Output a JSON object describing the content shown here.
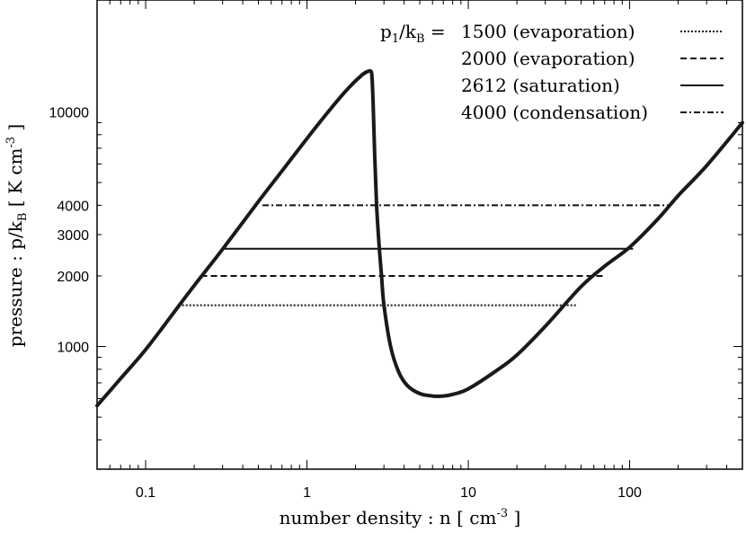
{
  "chart_data": {
    "type": "line",
    "xlabel": "number density : n [ cm",
    "xlabel_exp": "-3",
    "xlabel_close": " ]",
    "ylabel": "pressure : p/k",
    "ylabel_sub": "B",
    "ylabel_unit": " [ K cm",
    "ylabel_exp": "-3",
    "ylabel_close": " ]",
    "xscale": "log",
    "yscale": "log",
    "xlim": [
      0.05,
      500
    ],
    "ylim": [
      300,
      30000
    ],
    "x_ticks": [
      {
        "value": 0.1,
        "label": "0.1"
      },
      {
        "value": 1,
        "label": "1"
      },
      {
        "value": 10,
        "label": "10"
      },
      {
        "value": 100,
        "label": "100"
      }
    ],
    "y_ticks": [
      {
        "value": 1000,
        "label": "1000"
      },
      {
        "value": 2000,
        "label": "2000"
      },
      {
        "value": 3000,
        "label": "3000"
      },
      {
        "value": 4000,
        "label": "4000"
      },
      {
        "value": 10000,
        "label": "10000"
      }
    ],
    "legend": {
      "placement": "top-right",
      "title_main": "p",
      "title_sub1": "1",
      "title_mid": "/k",
      "title_sub2": "B",
      "title_eq": " = ",
      "entries": [
        {
          "label": "1500 (evaporation)",
          "style": "dotted"
        },
        {
          "label": "2000 (evaporation)",
          "style": "dashed"
        },
        {
          "label": "2612 (saturation)",
          "style": "solid"
        },
        {
          "label": "4000 (condensation)",
          "style": "dashdot"
        }
      ]
    },
    "curve": {
      "x": [
        0.05,
        0.07,
        0.1,
        0.15,
        0.2,
        0.3,
        0.5,
        0.7,
        1.0,
        1.4,
        1.8,
        2.2,
        2.4,
        2.5,
        2.53,
        2.57,
        2.63,
        2.7,
        2.8,
        2.9,
        3.0,
        3.3,
        3.7,
        4.2,
        5.0,
        6.0,
        7.0,
        8.0,
        10,
        15,
        20,
        30,
        50,
        70,
        100,
        150,
        200,
        300,
        500
      ],
      "y": [
        560,
        730,
        970,
        1400,
        1820,
        2600,
        4150,
        5600,
        7700,
        10300,
        12600,
        14400,
        14900,
        14850,
        14000,
        11000,
        6500,
        4000,
        2700,
        2000,
        1500,
        1000,
        780,
        680,
        630,
        615,
        615,
        625,
        660,
        790,
        920,
        1220,
        1800,
        2200,
        2650,
        3500,
        4400,
        5900,
        9000
      ]
    },
    "series": [
      {
        "name": "1500 (evaporation)",
        "style": "dotted",
        "y": 1500,
        "x_start": 0.16,
        "x_end": 47
      },
      {
        "name": "2000 (evaporation)",
        "style": "dashed",
        "y": 2000,
        "x_start": 0.22,
        "x_end": 70
      },
      {
        "name": "2612 (saturation)",
        "style": "solid",
        "y": 2612,
        "x_start": 0.3,
        "x_end": 105
      },
      {
        "name": "4000 (condensation)",
        "style": "dashdot",
        "y": 4000,
        "x_start": 0.53,
        "x_end": 180
      }
    ]
  }
}
